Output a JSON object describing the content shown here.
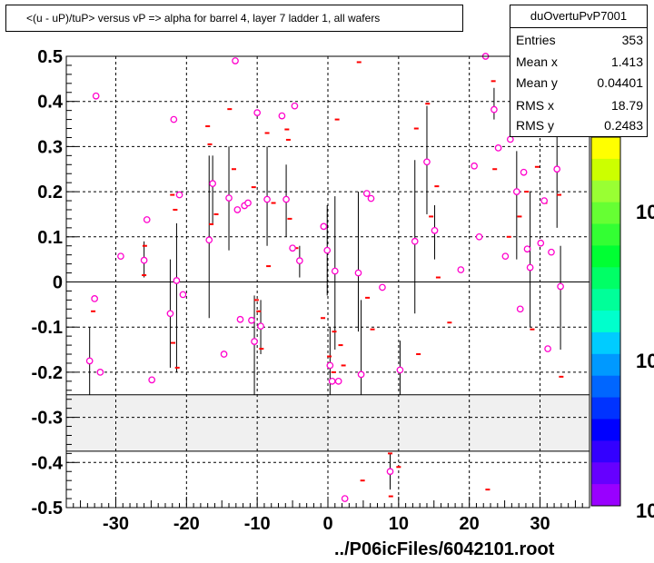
{
  "title": "<(u - uP)/tuP> versus  vP => alpha for barrel 4, layer 7 ladder 1, all wafers",
  "stats": {
    "name": "duOvertuPvP7001",
    "rows": [
      {
        "key": "Entries",
        "value": "353"
      },
      {
        "key": "Mean x",
        "value": "1.413"
      },
      {
        "key": "Mean y",
        "value": "0.04401"
      },
      {
        "key": "RMS x",
        "value": "18.79"
      },
      {
        "key": "RMS y",
        "value": "0.2483"
      }
    ]
  },
  "footer": "../P06icFiles/6042101.root",
  "palette_labels": [
    "10",
    "10",
    "10"
  ],
  "colors": {
    "marker": "#ff00cc",
    "red_marker": "#ff0000",
    "band_fill": "#f0f0f0"
  },
  "chart_data": {
    "type": "scatter",
    "title": "<(u - uP)/tuP> versus  vP => alpha for barrel 4, layer 7 ladder 1, all wafers",
    "xlim": [
      -37,
      37
    ],
    "ylim": [
      -0.5,
      0.5
    ],
    "x_ticks": [
      -30,
      -20,
      -10,
      0,
      10,
      20,
      30
    ],
    "y_ticks": [
      -0.5,
      -0.4,
      -0.3,
      -0.2,
      -0.1,
      0,
      0.1,
      0.2,
      0.3,
      0.4,
      0.5
    ],
    "grid": true,
    "excluded_band_y": [
      -0.375,
      -0.25
    ],
    "points": [
      {
        "x": -33.7,
        "y": -0.175,
        "lo": -0.25,
        "hi": -0.1
      },
      {
        "x": -33.0,
        "y": -0.037
      },
      {
        "x": -32.8,
        "y": 0.412
      },
      {
        "x": -32.2,
        "y": -0.2
      },
      {
        "x": -29.3,
        "y": 0.057
      },
      {
        "x": -26.0,
        "y": 0.048,
        "lo": 0.01,
        "hi": 0.09
      },
      {
        "x": -25.6,
        "y": 0.138
      },
      {
        "x": -24.9,
        "y": -0.217
      },
      {
        "x": -22.3,
        "y": -0.07,
        "lo": -0.19,
        "hi": 0.05
      },
      {
        "x": -21.8,
        "y": 0.36
      },
      {
        "x": -21.4,
        "y": 0.003,
        "lo": -0.2,
        "hi": 0.13
      },
      {
        "x": -21.0,
        "y": 0.193
      },
      {
        "x": -20.5,
        "y": -0.028
      },
      {
        "x": -16.8,
        "y": 0.093,
        "lo": -0.08,
        "hi": 0.28
      },
      {
        "x": -16.3,
        "y": 0.218,
        "lo": 0.13,
        "hi": 0.28
      },
      {
        "x": -14.7,
        "y": -0.16
      },
      {
        "x": -14.0,
        "y": 0.186,
        "lo": 0.07,
        "hi": 0.3
      },
      {
        "x": -13.1,
        "y": 0.49
      },
      {
        "x": -12.8,
        "y": 0.16
      },
      {
        "x": -12.4,
        "y": -0.083
      },
      {
        "x": -11.8,
        "y": 0.169
      },
      {
        "x": -11.3,
        "y": 0.175
      },
      {
        "x": -10.8,
        "y": -0.085
      },
      {
        "x": -10.4,
        "y": -0.132,
        "lo": -0.25,
        "hi": -0.03
      },
      {
        "x": -10.0,
        "y": 0.375
      },
      {
        "x": -9.5,
        "y": -0.098,
        "lo": -0.16,
        "hi": -0.04
      },
      {
        "x": -8.6,
        "y": 0.183,
        "lo": 0.08,
        "hi": 0.3
      },
      {
        "x": -6.5,
        "y": 0.368
      },
      {
        "x": -5.9,
        "y": 0.183,
        "lo": 0.1,
        "hi": 0.26
      },
      {
        "x": -5.0,
        "y": 0.075
      },
      {
        "x": -4.7,
        "y": 0.39
      },
      {
        "x": -4.0,
        "y": 0.047,
        "lo": 0.01,
        "hi": 0.08
      },
      {
        "x": -0.6,
        "y": 0.123
      },
      {
        "x": -0.1,
        "y": 0.07,
        "lo": -0.03,
        "hi": 0.17
      },
      {
        "x": 0.3,
        "y": -0.185,
        "lo": -0.25,
        "hi": -0.1
      },
      {
        "x": 0.6,
        "y": -0.22
      },
      {
        "x": 1.0,
        "y": 0.024,
        "lo": -0.15,
        "hi": 0.19
      },
      {
        "x": 1.5,
        "y": -0.22
      },
      {
        "x": 2.4,
        "y": -0.48
      },
      {
        "x": 4.3,
        "y": 0.02,
        "lo": -0.11,
        "hi": 0.2
      },
      {
        "x": 4.7,
        "y": -0.205,
        "lo": -0.25,
        "hi": -0.04
      },
      {
        "x": 5.5,
        "y": 0.196
      },
      {
        "x": 6.1,
        "y": 0.185
      },
      {
        "x": 7.7,
        "y": -0.012
      },
      {
        "x": 8.8,
        "y": -0.42,
        "lo": -0.46,
        "hi": -0.38
      },
      {
        "x": 10.2,
        "y": -0.195,
        "lo": -0.25,
        "hi": -0.13
      },
      {
        "x": 12.3,
        "y": 0.09,
        "lo": -0.07,
        "hi": 0.27
      },
      {
        "x": 14.0,
        "y": 0.266,
        "lo": 0.15,
        "hi": 0.39
      },
      {
        "x": 15.1,
        "y": 0.114,
        "lo": 0.05,
        "hi": 0.17
      },
      {
        "x": 18.8,
        "y": 0.027
      },
      {
        "x": 20.7,
        "y": 0.257
      },
      {
        "x": 21.4,
        "y": 0.1
      },
      {
        "x": 22.3,
        "y": 0.5
      },
      {
        "x": 23.5,
        "y": 0.382,
        "lo": 0.36,
        "hi": 0.43
      },
      {
        "x": 24.1,
        "y": 0.297
      },
      {
        "x": 25.1,
        "y": 0.057
      },
      {
        "x": 25.8,
        "y": 0.316
      },
      {
        "x": 26.7,
        "y": 0.2,
        "lo": 0.05,
        "hi": 0.29
      },
      {
        "x": 27.2,
        "y": -0.06
      },
      {
        "x": 27.7,
        "y": 0.243
      },
      {
        "x": 28.2,
        "y": 0.073
      },
      {
        "x": 28.6,
        "y": 0.032,
        "lo": -0.1,
        "hi": 0.2
      },
      {
        "x": 30.1,
        "y": 0.086
      },
      {
        "x": 30.6,
        "y": 0.18
      },
      {
        "x": 31.1,
        "y": -0.148
      },
      {
        "x": 31.6,
        "y": 0.066
      },
      {
        "x": 32.4,
        "y": 0.25,
        "lo": 0.12,
        "hi": 0.36
      },
      {
        "x": 32.9,
        "y": -0.01,
        "lo": -0.15,
        "hi": 0.08
      }
    ],
    "red_markers": [
      [
        -33.2,
        -0.065
      ],
      [
        -25.9,
        0.08
      ],
      [
        -26.0,
        0.015
      ],
      [
        -22.0,
        0.193
      ],
      [
        -21.9,
        -0.135
      ],
      [
        -21.6,
        0.16
      ],
      [
        -21.3,
        -0.19
      ],
      [
        -17.0,
        0.345
      ],
      [
        -16.7,
        0.305
      ],
      [
        -16.5,
        0.128
      ],
      [
        -15.8,
        0.15
      ],
      [
        -13.9,
        0.383
      ],
      [
        -13.3,
        0.25
      ],
      [
        -10.5,
        0.21
      ],
      [
        -10.1,
        -0.04
      ],
      [
        -9.8,
        -0.065
      ],
      [
        -9.4,
        -0.148
      ],
      [
        -8.6,
        0.33
      ],
      [
        -8.4,
        0.035
      ],
      [
        -7.7,
        0.175
      ],
      [
        -5.8,
        0.338
      ],
      [
        -5.6,
        0.315
      ],
      [
        -5.4,
        0.14
      ],
      [
        -4.5,
        0.075
      ],
      [
        -0.7,
        -0.08
      ],
      [
        0.2,
        -0.165
      ],
      [
        0.8,
        -0.2
      ],
      [
        1.3,
        0.36
      ],
      [
        0.9,
        -0.11
      ],
      [
        1.8,
        -0.14
      ],
      [
        2.2,
        -0.185
      ],
      [
        4.4,
        0.487
      ],
      [
        4.9,
        -0.44
      ],
      [
        5.6,
        -0.035
      ],
      [
        6.3,
        -0.105
      ],
      [
        8.8,
        -0.38
      ],
      [
        8.9,
        -0.475
      ],
      [
        10.0,
        -0.41
      ],
      [
        12.5,
        0.34
      ],
      [
        12.8,
        -0.16
      ],
      [
        14.1,
        0.395
      ],
      [
        14.6,
        0.145
      ],
      [
        15.4,
        0.212
      ],
      [
        15.6,
        0.01
      ],
      [
        17.2,
        -0.09
      ],
      [
        22.6,
        -0.46
      ],
      [
        23.4,
        0.445
      ],
      [
        23.6,
        0.25
      ],
      [
        25.6,
        0.1
      ],
      [
        26.9,
        0.4
      ],
      [
        27.1,
        0.145
      ],
      [
        28.1,
        0.2
      ],
      [
        28.9,
        -0.105
      ],
      [
        29.6,
        0.255
      ],
      [
        30.7,
        0.175
      ],
      [
        32.7,
        0.193
      ],
      [
        33.0,
        -0.21
      ]
    ]
  }
}
